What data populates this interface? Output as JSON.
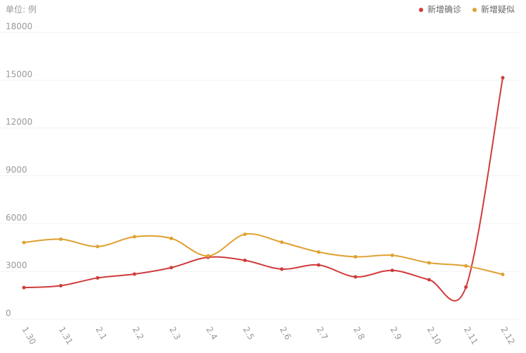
{
  "chart_data": {
    "type": "line",
    "unit_label": "单位: 例",
    "categories": [
      "1.30",
      "1.31",
      "2.1",
      "2.2",
      "2.3",
      "2.4",
      "2.5",
      "2.6",
      "2.7",
      "2.8",
      "2.9",
      "2.10",
      "2.11",
      "2.12"
    ],
    "series": [
      {
        "name": "新增确诊",
        "color": "#d13b3b",
        "values": [
          1982,
          2102,
          2590,
          2829,
          3235,
          3887,
          3694,
          3143,
          3399,
          2656,
          3062,
          2478,
          2015,
          15152
        ]
      },
      {
        "name": "新增疑似",
        "color": "#e0a030",
        "values": [
          4812,
          5019,
          4562,
          5173,
          5072,
          3971,
          5328,
          4833,
          4214,
          3916,
          4008,
          3536,
          3342,
          2807
        ]
      }
    ],
    "ylim": [
      0,
      18000
    ],
    "yticks": [
      0,
      3000,
      6000,
      9000,
      12000,
      15000,
      18000
    ],
    "grid": true,
    "legend": "top-right"
  }
}
